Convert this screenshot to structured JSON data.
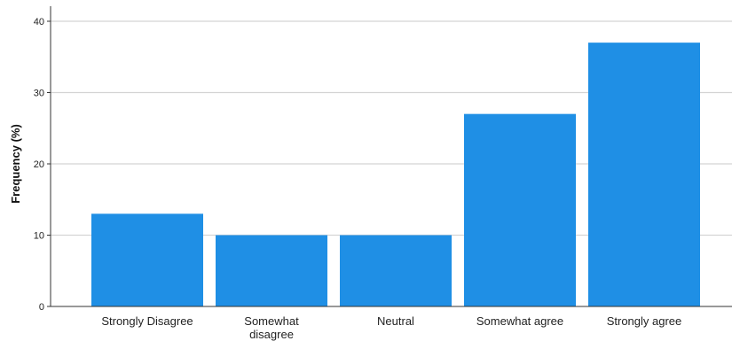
{
  "chart_data": {
    "type": "bar",
    "categories": [
      [
        "Strongly Disagree"
      ],
      [
        "Somewhat",
        "disagree"
      ],
      [
        "Neutral"
      ],
      [
        "Somewhat agree"
      ],
      [
        "Strongly agree"
      ]
    ],
    "values": [
      13,
      10,
      10,
      27,
      37
    ],
    "ylabel": "Frequency (%)",
    "xlabel": "",
    "title": "",
    "ylim": [
      0,
      42
    ],
    "yticks": [
      "0",
      "10",
      "20",
      "30",
      "40"
    ],
    "grid": true,
    "bar_color": "#1f8fe5"
  }
}
